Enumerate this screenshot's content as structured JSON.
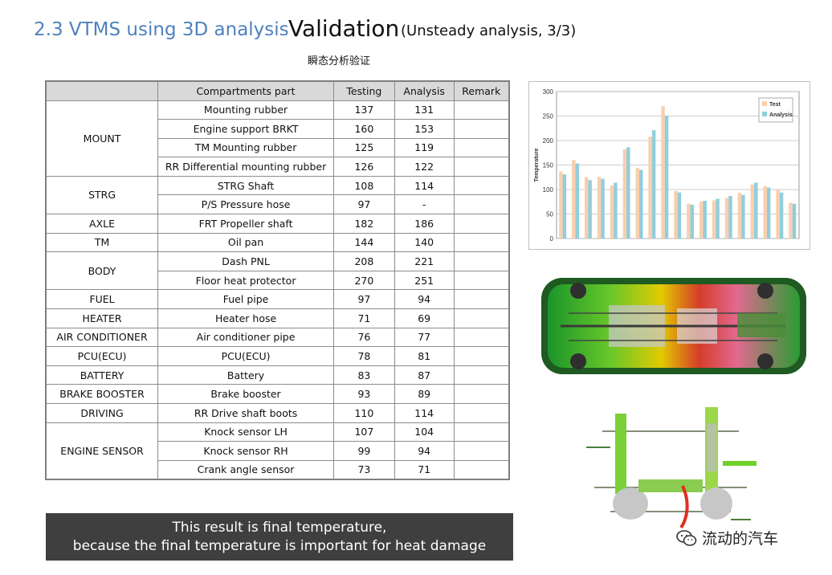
{
  "header": {
    "section": "2.3 VTMS using 3D analysis",
    "title": "Validation",
    "subtitle": "(Unsteady analysis, 3/3)",
    "subtitle_cn": "瞬态分析验证"
  },
  "table": {
    "headers": [
      "",
      "Compartments  part",
      "Testing",
      "Analysis",
      "Remark"
    ],
    "groups": [
      {
        "name": "MOUNT",
        "rows": [
          [
            "Mounting rubber",
            "137",
            "131"
          ],
          [
            "Engine support BRKT",
            "160",
            "153"
          ],
          [
            "TM Mounting rubber",
            "125",
            "119"
          ],
          [
            "RR Differential  mounting rubber",
            "126",
            "122"
          ]
        ]
      },
      {
        "name": "STRG",
        "rows": [
          [
            "STRG Shaft",
            "108",
            "114"
          ],
          [
            "P/S  Pressure hose",
            "97",
            "-"
          ]
        ]
      },
      {
        "name": "AXLE",
        "rows": [
          [
            "FRT Propeller shaft",
            "182",
            "186"
          ]
        ]
      },
      {
        "name": "TM",
        "rows": [
          [
            "Oil pan",
            "144",
            "140"
          ]
        ]
      },
      {
        "name": "BODY",
        "rows": [
          [
            "Dash PNL",
            "208",
            "221"
          ],
          [
            "Floor heat protector",
            "270",
            "251"
          ]
        ]
      },
      {
        "name": "FUEL",
        "rows": [
          [
            "Fuel pipe",
            "97",
            "94"
          ]
        ]
      },
      {
        "name": "HEATER",
        "rows": [
          [
            "Heater  hose",
            "71",
            "69"
          ]
        ]
      },
      {
        "name": "AIR CONDITIONER",
        "rows": [
          [
            "Air conditioner  pipe",
            "76",
            "77"
          ]
        ]
      },
      {
        "name": "PCU(ECU)",
        "rows": [
          [
            "PCU(ECU)",
            "78",
            "81"
          ]
        ]
      },
      {
        "name": "BATTERY",
        "rows": [
          [
            "Battery",
            "83",
            "87"
          ]
        ]
      },
      {
        "name": "BRAKE BOOSTER",
        "rows": [
          [
            "Brake booster",
            "93",
            "89"
          ]
        ]
      },
      {
        "name": "DRIVING",
        "rows": [
          [
            "RR Drive shaft boots",
            "110",
            "114"
          ]
        ]
      },
      {
        "name": "ENGINE SENSOR",
        "rows": [
          [
            "Knock sensor LH",
            "107",
            "104"
          ],
          [
            "Knock sensor RH",
            "99",
            "94"
          ],
          [
            "Crank angle sensor",
            "73",
            "71"
          ]
        ]
      }
    ]
  },
  "chart_data": {
    "type": "bar",
    "title": "",
    "xlabel": "",
    "ylabel": "Temperature",
    "ylim": [
      0,
      300
    ],
    "yticks": [
      "0",
      "50",
      "100",
      "150",
      "200",
      "250",
      "300"
    ],
    "grid": true,
    "legend_position": "top-right",
    "series": [
      {
        "name": "Test",
        "color": "#f9cfae",
        "values": [
          137,
          160,
          125,
          126,
          108,
          182,
          144,
          208,
          270,
          97,
          71,
          76,
          78,
          83,
          93,
          110,
          107,
          99,
          73
        ]
      },
      {
        "name": "Analysis",
        "color": "#92cddc",
        "values": [
          131,
          153,
          119,
          122,
          114,
          186,
          140,
          221,
          251,
          94,
          69,
          77,
          81,
          87,
          89,
          114,
          104,
          94,
          71
        ]
      }
    ]
  },
  "note": {
    "line1": "This result is final temperature,",
    "line2": "because the final temperature is important for heat damage"
  },
  "watermark": {
    "text": "流动的汽车"
  }
}
